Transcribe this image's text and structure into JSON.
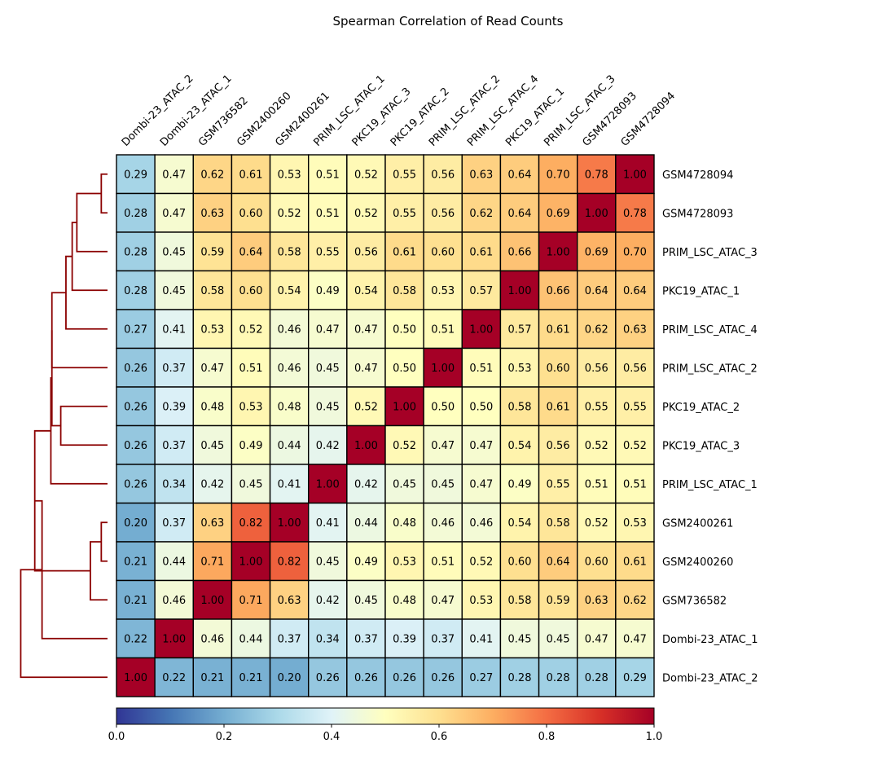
{
  "chart_data": {
    "type": "heatmap",
    "title": "Spearman Correlation of Read Counts",
    "columns": [
      "Dombi-23_ATAC_2",
      "Dombi-23_ATAC_1",
      "GSM736582",
      "GSM2400260",
      "GSM2400261",
      "PRIM_LSC_ATAC_1",
      "PKC19_ATAC_3",
      "PKC19_ATAC_2",
      "PRIM_LSC_ATAC_2",
      "PRIM_LSC_ATAC_4",
      "PKC19_ATAC_1",
      "PRIM_LSC_ATAC_3",
      "GSM4728093",
      "GSM4728094"
    ],
    "rows": [
      "GSM4728094",
      "GSM4728093",
      "PRIM_LSC_ATAC_3",
      "PKC19_ATAC_1",
      "PRIM_LSC_ATAC_4",
      "PRIM_LSC_ATAC_2",
      "PKC19_ATAC_2",
      "PKC19_ATAC_3",
      "PRIM_LSC_ATAC_1",
      "GSM2400261",
      "GSM2400260",
      "GSM736582",
      "Dombi-23_ATAC_1",
      "Dombi-23_ATAC_2"
    ],
    "values": [
      [
        0.29,
        0.47,
        0.62,
        0.61,
        0.53,
        0.51,
        0.52,
        0.55,
        0.56,
        0.63,
        0.64,
        0.7,
        0.78,
        1.0
      ],
      [
        0.28,
        0.47,
        0.63,
        0.6,
        0.52,
        0.51,
        0.52,
        0.55,
        0.56,
        0.62,
        0.64,
        0.69,
        1.0,
        0.78
      ],
      [
        0.28,
        0.45,
        0.59,
        0.64,
        0.58,
        0.55,
        0.56,
        0.61,
        0.6,
        0.61,
        0.66,
        1.0,
        0.69,
        0.7
      ],
      [
        0.28,
        0.45,
        0.58,
        0.6,
        0.54,
        0.49,
        0.54,
        0.58,
        0.53,
        0.57,
        1.0,
        0.66,
        0.64,
        0.64
      ],
      [
        0.27,
        0.41,
        0.53,
        0.52,
        0.46,
        0.47,
        0.47,
        0.5,
        0.51,
        1.0,
        0.57,
        0.61,
        0.62,
        0.63
      ],
      [
        0.26,
        0.37,
        0.47,
        0.51,
        0.46,
        0.45,
        0.47,
        0.5,
        1.0,
        0.51,
        0.53,
        0.6,
        0.56,
        0.56
      ],
      [
        0.26,
        0.39,
        0.48,
        0.53,
        0.48,
        0.45,
        0.52,
        1.0,
        0.5,
        0.5,
        0.58,
        0.61,
        0.55,
        0.55
      ],
      [
        0.26,
        0.37,
        0.45,
        0.49,
        0.44,
        0.42,
        1.0,
        0.52,
        0.47,
        0.47,
        0.54,
        0.56,
        0.52,
        0.52
      ],
      [
        0.26,
        0.34,
        0.42,
        0.45,
        0.41,
        1.0,
        0.42,
        0.45,
        0.45,
        0.47,
        0.49,
        0.55,
        0.51,
        0.51
      ],
      [
        0.2,
        0.37,
        0.63,
        0.82,
        1.0,
        0.41,
        0.44,
        0.48,
        0.46,
        0.46,
        0.54,
        0.58,
        0.52,
        0.53
      ],
      [
        0.21,
        0.44,
        0.71,
        1.0,
        0.82,
        0.45,
        0.49,
        0.53,
        0.51,
        0.52,
        0.6,
        0.64,
        0.6,
        0.61
      ],
      [
        0.21,
        0.46,
        1.0,
        0.71,
        0.63,
        0.42,
        0.45,
        0.48,
        0.47,
        0.53,
        0.58,
        0.59,
        0.63,
        0.62
      ],
      [
        0.22,
        1.0,
        0.46,
        0.44,
        0.37,
        0.34,
        0.37,
        0.39,
        0.37,
        0.41,
        0.45,
        0.45,
        0.47,
        0.47
      ],
      [
        1.0,
        0.22,
        0.21,
        0.21,
        0.2,
        0.26,
        0.26,
        0.26,
        0.26,
        0.27,
        0.28,
        0.28,
        0.28,
        0.29
      ]
    ],
    "colorbar": {
      "range": [
        0.0,
        1.0
      ],
      "ticks": [
        "0.0",
        "0.2",
        "0.4",
        "0.6",
        "0.8",
        "1.0"
      ],
      "tick_values": [
        0,
        0.2,
        0.4,
        0.6,
        0.8,
        1.0
      ],
      "colormap": "RdYlBu_r",
      "placement": "bottom"
    },
    "dendrogram": {
      "placement": "left",
      "color": "#8b0000",
      "levels": [
        0.167,
        0.126,
        0.14,
        0.109,
        0.107,
        0.095,
        0.107,
        0.09,
        0.08,
        0.033,
        0.068,
        0.059,
        0.012
      ]
    }
  }
}
